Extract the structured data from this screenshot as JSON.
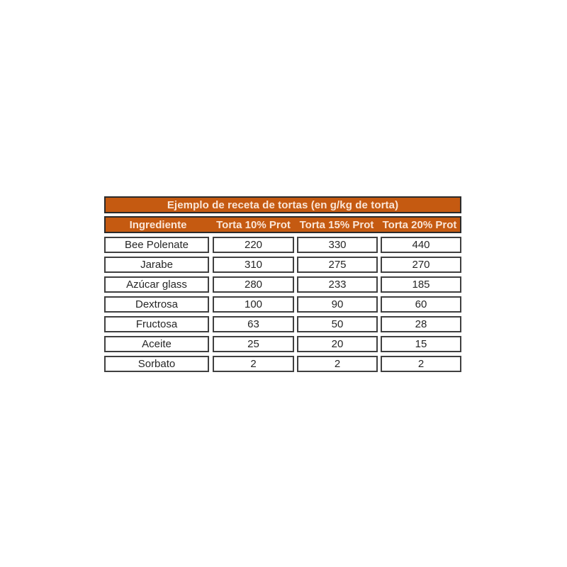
{
  "table": {
    "title": "Ejemplo de receta de tortas (en g/kg de torta)",
    "headers": [
      "Ingrediente",
      "Torta 10% Prot",
      "Torta 15% Prot",
      "Torta 20% Prot"
    ],
    "rows": [
      [
        "Bee Polenate",
        "220",
        "330",
        "440"
      ],
      [
        "Jarabe",
        "310",
        "275",
        "270"
      ],
      [
        "Azúcar glass",
        "280",
        "233",
        "185"
      ],
      [
        "Dextrosa",
        "100",
        "90",
        "60"
      ],
      [
        "Fructosa",
        "63",
        "50",
        "28"
      ],
      [
        "Aceite",
        "25",
        "20",
        "15"
      ],
      [
        "Sorbato",
        "2",
        "2",
        "2"
      ]
    ]
  },
  "chart_data": {
    "type": "table",
    "title": "Ejemplo de receta de tortas (en g/kg de torta)",
    "columns": [
      "Ingrediente",
      "Torta 10% Prot",
      "Torta 15% Prot",
      "Torta 20% Prot"
    ],
    "rows": [
      [
        "Bee Polenate",
        220,
        330,
        440
      ],
      [
        "Jarabe",
        310,
        275,
        270
      ],
      [
        "Azúcar glass",
        280,
        233,
        185
      ],
      [
        "Dextrosa",
        100,
        90,
        60
      ],
      [
        "Fructosa",
        63,
        50,
        28
      ],
      [
        "Aceite",
        25,
        20,
        15
      ],
      [
        "Sorbato",
        2,
        2,
        2
      ]
    ]
  },
  "colors": {
    "accent_orange": "#C55A11",
    "header_text": "#FAE6D8",
    "orange_border": "#2B2B2B",
    "cell_border": "#404040",
    "cell_text": "#262626",
    "page_background": "#FFFFFF"
  }
}
